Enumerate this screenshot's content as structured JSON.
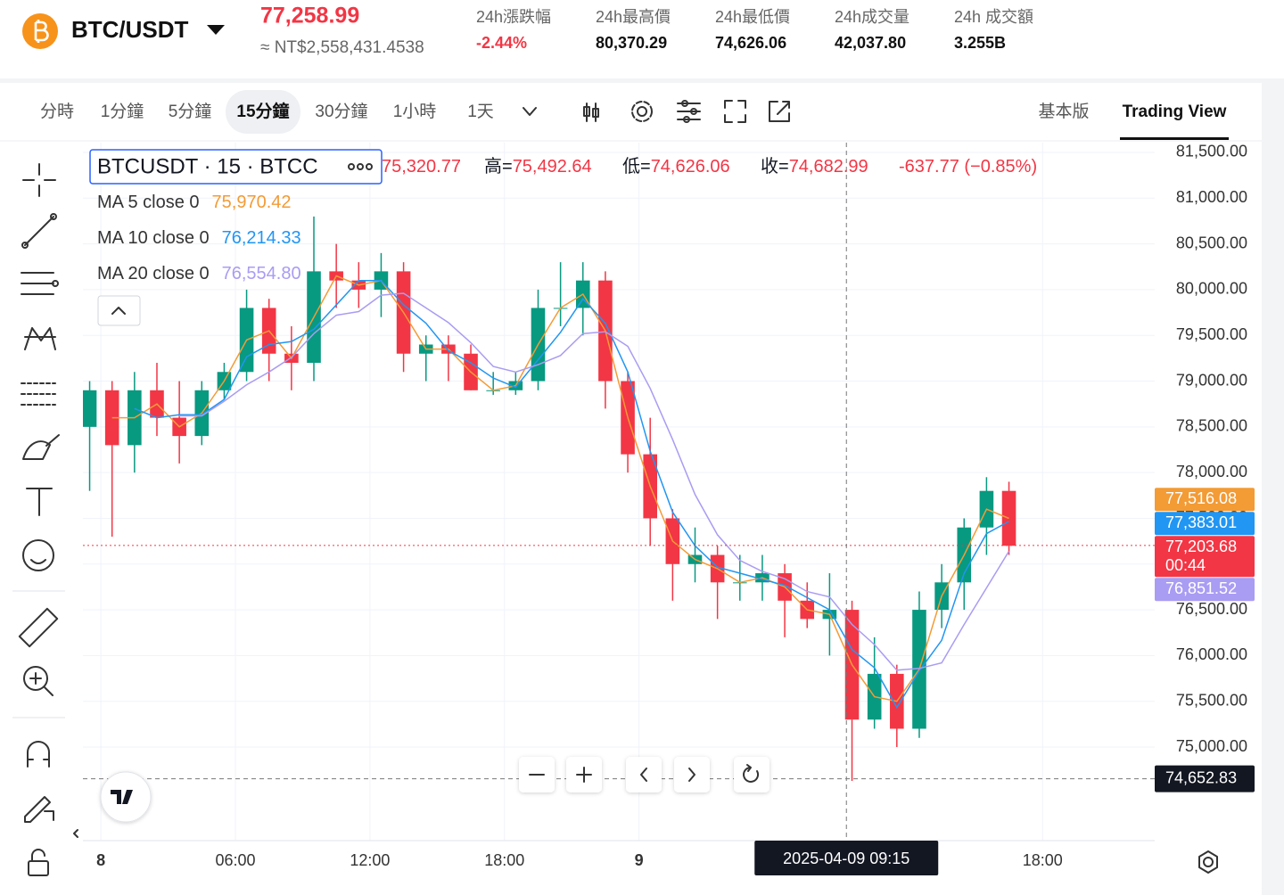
{
  "header": {
    "pair": "BTC/USDT",
    "price": "77,258.99",
    "fiat_price": "≈ NT$2,558,431.4538",
    "stats": [
      {
        "label": "24h漲跌幅",
        "value": "-2.44%",
        "color": "#f23645"
      },
      {
        "label": "24h最高價",
        "value": "80,370.29",
        "color": "#111111"
      },
      {
        "label": "24h最低價",
        "value": "74,626.06",
        "color": "#111111"
      },
      {
        "label": "24h成交量",
        "value": "42,037.80",
        "color": "#111111"
      },
      {
        "label": "24h 成交額",
        "value": "3.255B",
        "color": "#111111"
      }
    ]
  },
  "toolbar": {
    "intervals": [
      "分時",
      "1分鐘",
      "5分鐘",
      "15分鐘",
      "30分鐘",
      "1小時",
      "1天"
    ],
    "selected_index": 3,
    "views": [
      "基本版",
      "Trading View"
    ],
    "active_view_index": 1
  },
  "chart_data": {
    "type": "candlestick",
    "legend": {
      "symbol": "BTCUSDT · 15 · BTCC",
      "ohlc": [
        {
          "value": "75,320.77"
        },
        {
          "key": "高=",
          "value": "75,492.64"
        },
        {
          "key": "低=",
          "value": "74,626.06"
        },
        {
          "key": "收=",
          "value": "74,682.99"
        },
        {
          "value": "-637.77 (−0.85%)"
        }
      ],
      "ma": [
        {
          "name": "MA 5 close 0",
          "value": "75,970.42",
          "color": "#f39b35"
        },
        {
          "name": "MA 10 close 0",
          "value": "76,214.33",
          "color": "#2196f3"
        },
        {
          "name": "MA 20 close 0",
          "value": "76,554.80",
          "color": "#a99cf3"
        }
      ]
    },
    "up_color": "#089981",
    "down_color": "#f23645",
    "x": [
      -1,
      0,
      1,
      2,
      3,
      4,
      5,
      6,
      7,
      8,
      9,
      10,
      11,
      12,
      13,
      14,
      15,
      16,
      17,
      18,
      19,
      20,
      21,
      22,
      23,
      24,
      25,
      26,
      27,
      28,
      29,
      30,
      31,
      32,
      33,
      34,
      35,
      36,
      37,
      38,
      39,
      40
    ],
    "open": [
      78500,
      78900,
      78300,
      78900,
      78600,
      78400,
      78900,
      79100,
      79800,
      79300,
      79200,
      80200,
      80100,
      80000,
      80200,
      79300,
      79400,
      79300,
      78900,
      78900,
      79000,
      79800,
      79800,
      80100,
      79000,
      78200,
      77500,
      77000,
      77100,
      76800,
      76800,
      76900,
      76600,
      76400,
      76500,
      75300,
      75800,
      75200,
      76500,
      76800,
      77400,
      77800
    ],
    "high": [
      79000,
      79000,
      79100,
      79200,
      79000,
      79000,
      79200,
      80000,
      79900,
      79600,
      80800,
      80500,
      80300,
      80400,
      80300,
      79500,
      79500,
      79400,
      79100,
      79100,
      80000,
      80300,
      80300,
      80200,
      79100,
      78600,
      77600,
      77400,
      77200,
      77100,
      77100,
      77000,
      76800,
      76900,
      76600,
      76200,
      75900,
      76700,
      77000,
      77500,
      77950,
      77900
    ],
    "low": [
      77800,
      77300,
      78000,
      78400,
      78100,
      78300,
      78800,
      79000,
      79000,
      78900,
      79000,
      79800,
      79800,
      79700,
      79100,
      79000,
      79000,
      78900,
      78850,
      78850,
      78900,
      79600,
      79500,
      78700,
      78000,
      77200,
      76600,
      76800,
      76400,
      76600,
      76600,
      76200,
      76300,
      76000,
      74630,
      75200,
      75000,
      75100,
      76300,
      76500,
      77100,
      77100
    ],
    "close": [
      78900,
      78300,
      78900,
      78600,
      78400,
      78900,
      79100,
      79800,
      79300,
      79200,
      80200,
      80100,
      80000,
      80200,
      79300,
      79400,
      79300,
      78900,
      78900,
      79000,
      79800,
      79800,
      80100,
      79000,
      78200,
      77500,
      77000,
      77100,
      76800,
      76800,
      76900,
      76600,
      76400,
      76500,
      75300,
      75800,
      75200,
      76500,
      76800,
      77400,
      77800,
      77200
    ],
    "xlim": [
      -0.8,
      47
    ],
    "ylim": [
      73977,
      81607
    ],
    "xticks": [
      {
        "value": 0,
        "label": "8"
      },
      {
        "value": 6,
        "label": "06:00"
      },
      {
        "value": 12,
        "label": "12:00"
      },
      {
        "value": 18,
        "label": "18:00"
      },
      {
        "value": 24,
        "label": "9"
      },
      {
        "value": 42,
        "label": "18:00"
      }
    ],
    "yticks": [
      {
        "value": 75000,
        "label": "75,000.00"
      },
      {
        "value": 75500,
        "label": "75,500.00"
      },
      {
        "value": 76000,
        "label": "76,000.00"
      },
      {
        "value": 76500,
        "label": "76,500.00"
      },
      {
        "value": 77000,
        "label": "77,000.00"
      },
      {
        "value": 77500,
        "label": "77,500.00"
      },
      {
        "value": 78000,
        "label": "78,000.00"
      },
      {
        "value": 78500,
        "label": "78,500.00"
      },
      {
        "value": 79000,
        "label": "79,000.00"
      },
      {
        "value": 79500,
        "label": "79,500.00"
      },
      {
        "value": 80000,
        "label": "80,000.00"
      },
      {
        "value": 80500,
        "label": "80,500.00"
      },
      {
        "value": 81000,
        "label": "81,000.00"
      },
      {
        "value": 81500,
        "label": "81,500.00"
      }
    ],
    "grid": true,
    "last_price": 77203.68,
    "price_tags": [
      {
        "value": 77516.08,
        "label": "77,516.08",
        "color": "#f39b35"
      },
      {
        "value": 77383.01,
        "label": "77,383.01",
        "color": "#2196f3"
      },
      {
        "value": 77203.68,
        "label": "77,203.68",
        "countdown": "00:44",
        "color": "#f23645"
      },
      {
        "value": 76851.52,
        "label": "76,851.52",
        "color": "#a99cf3"
      }
    ],
    "crosshair": {
      "x": 33.25,
      "y": 74652.83,
      "x_label": "2025-04-09  09:15",
      "y_label": "74,652.83"
    }
  }
}
